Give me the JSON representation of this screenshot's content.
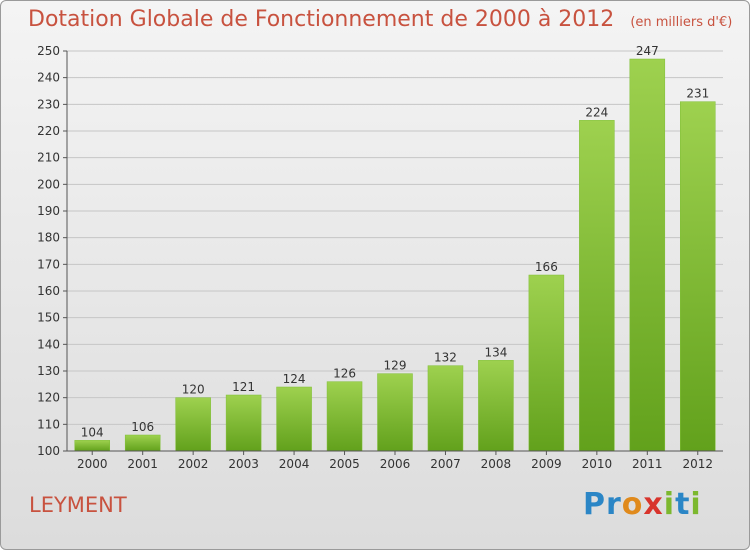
{
  "title": "Dotation Globale de Fonctionnement de 2000 à 2012",
  "subtitle": "(en milliers d'€)",
  "commune": "LEYMENT",
  "logo": [
    "P",
    "r",
    "o",
    "x",
    "i",
    "t",
    "i"
  ],
  "colors": {
    "title": "#c8523f",
    "bar_light": "#9ed14f",
    "bar_dark": "#62a11c",
    "logo": [
      "#2b86c6",
      "#2b86c6",
      "#e08a1c",
      "#d8342c",
      "#7cb82e",
      "#2b86c6",
      "#7cb82e"
    ]
  },
  "chart_data": {
    "type": "bar",
    "categories": [
      "2000",
      "2001",
      "2002",
      "2003",
      "2004",
      "2005",
      "2006",
      "2007",
      "2008",
      "2009",
      "2010",
      "2011",
      "2012"
    ],
    "values": [
      104,
      106,
      120,
      121,
      124,
      126,
      129,
      132,
      134,
      166,
      224,
      247,
      231
    ],
    "ylim": [
      100,
      250
    ],
    "yticks": [
      100,
      110,
      120,
      130,
      140,
      150,
      160,
      170,
      180,
      190,
      200,
      210,
      220,
      230,
      240,
      250
    ],
    "grid": true
  }
}
